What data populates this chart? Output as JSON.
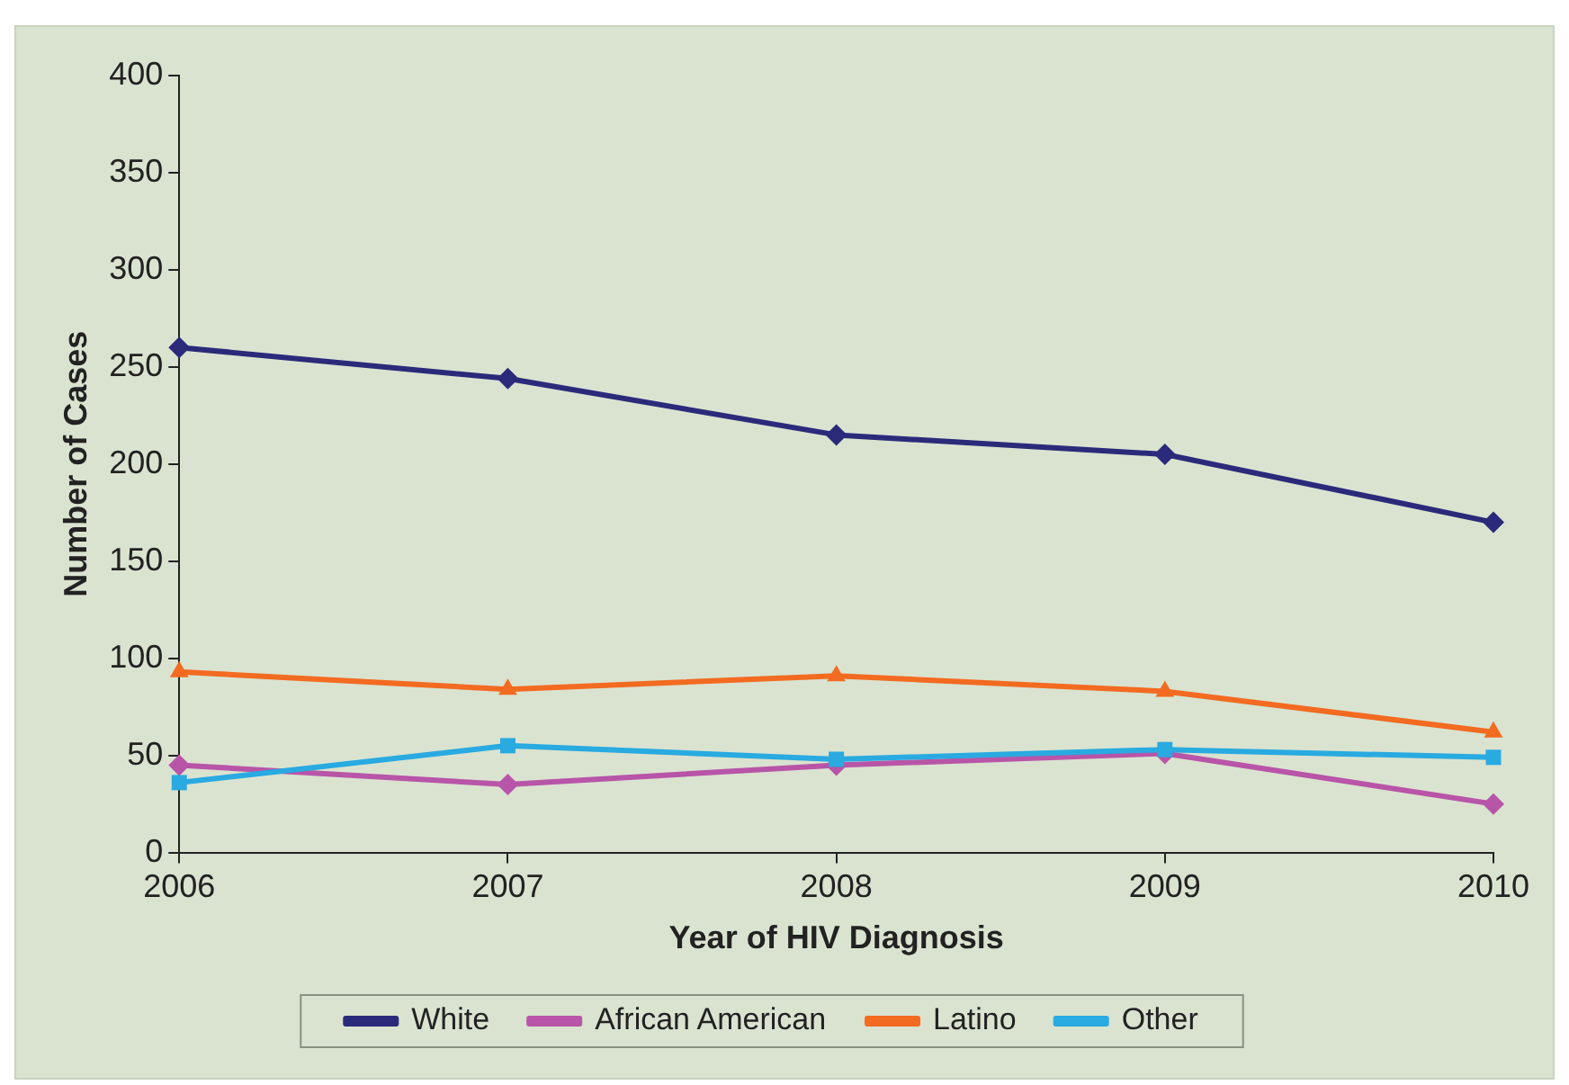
{
  "chart_data": {
    "type": "line",
    "xlabel": "Year of HIV Diagnosis",
    "ylabel": "Number of Cases",
    "x": [
      2006,
      2007,
      2008,
      2009,
      2010
    ],
    "series": [
      {
        "name": "White",
        "color": "#2b2a7a",
        "marker": "diamond",
        "values": [
          260,
          244,
          215,
          205,
          170
        ]
      },
      {
        "name": "African American",
        "color": "#b855a8",
        "marker": "diamond",
        "values": [
          45,
          35,
          45,
          51,
          25
        ]
      },
      {
        "name": "Latino",
        "color": "#f26b21",
        "marker": "triangle",
        "values": [
          93,
          84,
          91,
          83,
          62
        ]
      },
      {
        "name": "Other",
        "color": "#29aae1",
        "marker": "square",
        "values": [
          36,
          55,
          48,
          53,
          49
        ]
      }
    ],
    "xlim": [
      2006,
      2010
    ],
    "xticks": [
      2006,
      2007,
      2008,
      2009,
      2010
    ],
    "ylim": [
      0,
      400
    ],
    "yticks": [
      0,
      50,
      100,
      150,
      200,
      250,
      300,
      350,
      400
    ],
    "grid": false,
    "legend": "bottom",
    "line_style": "solid"
  }
}
